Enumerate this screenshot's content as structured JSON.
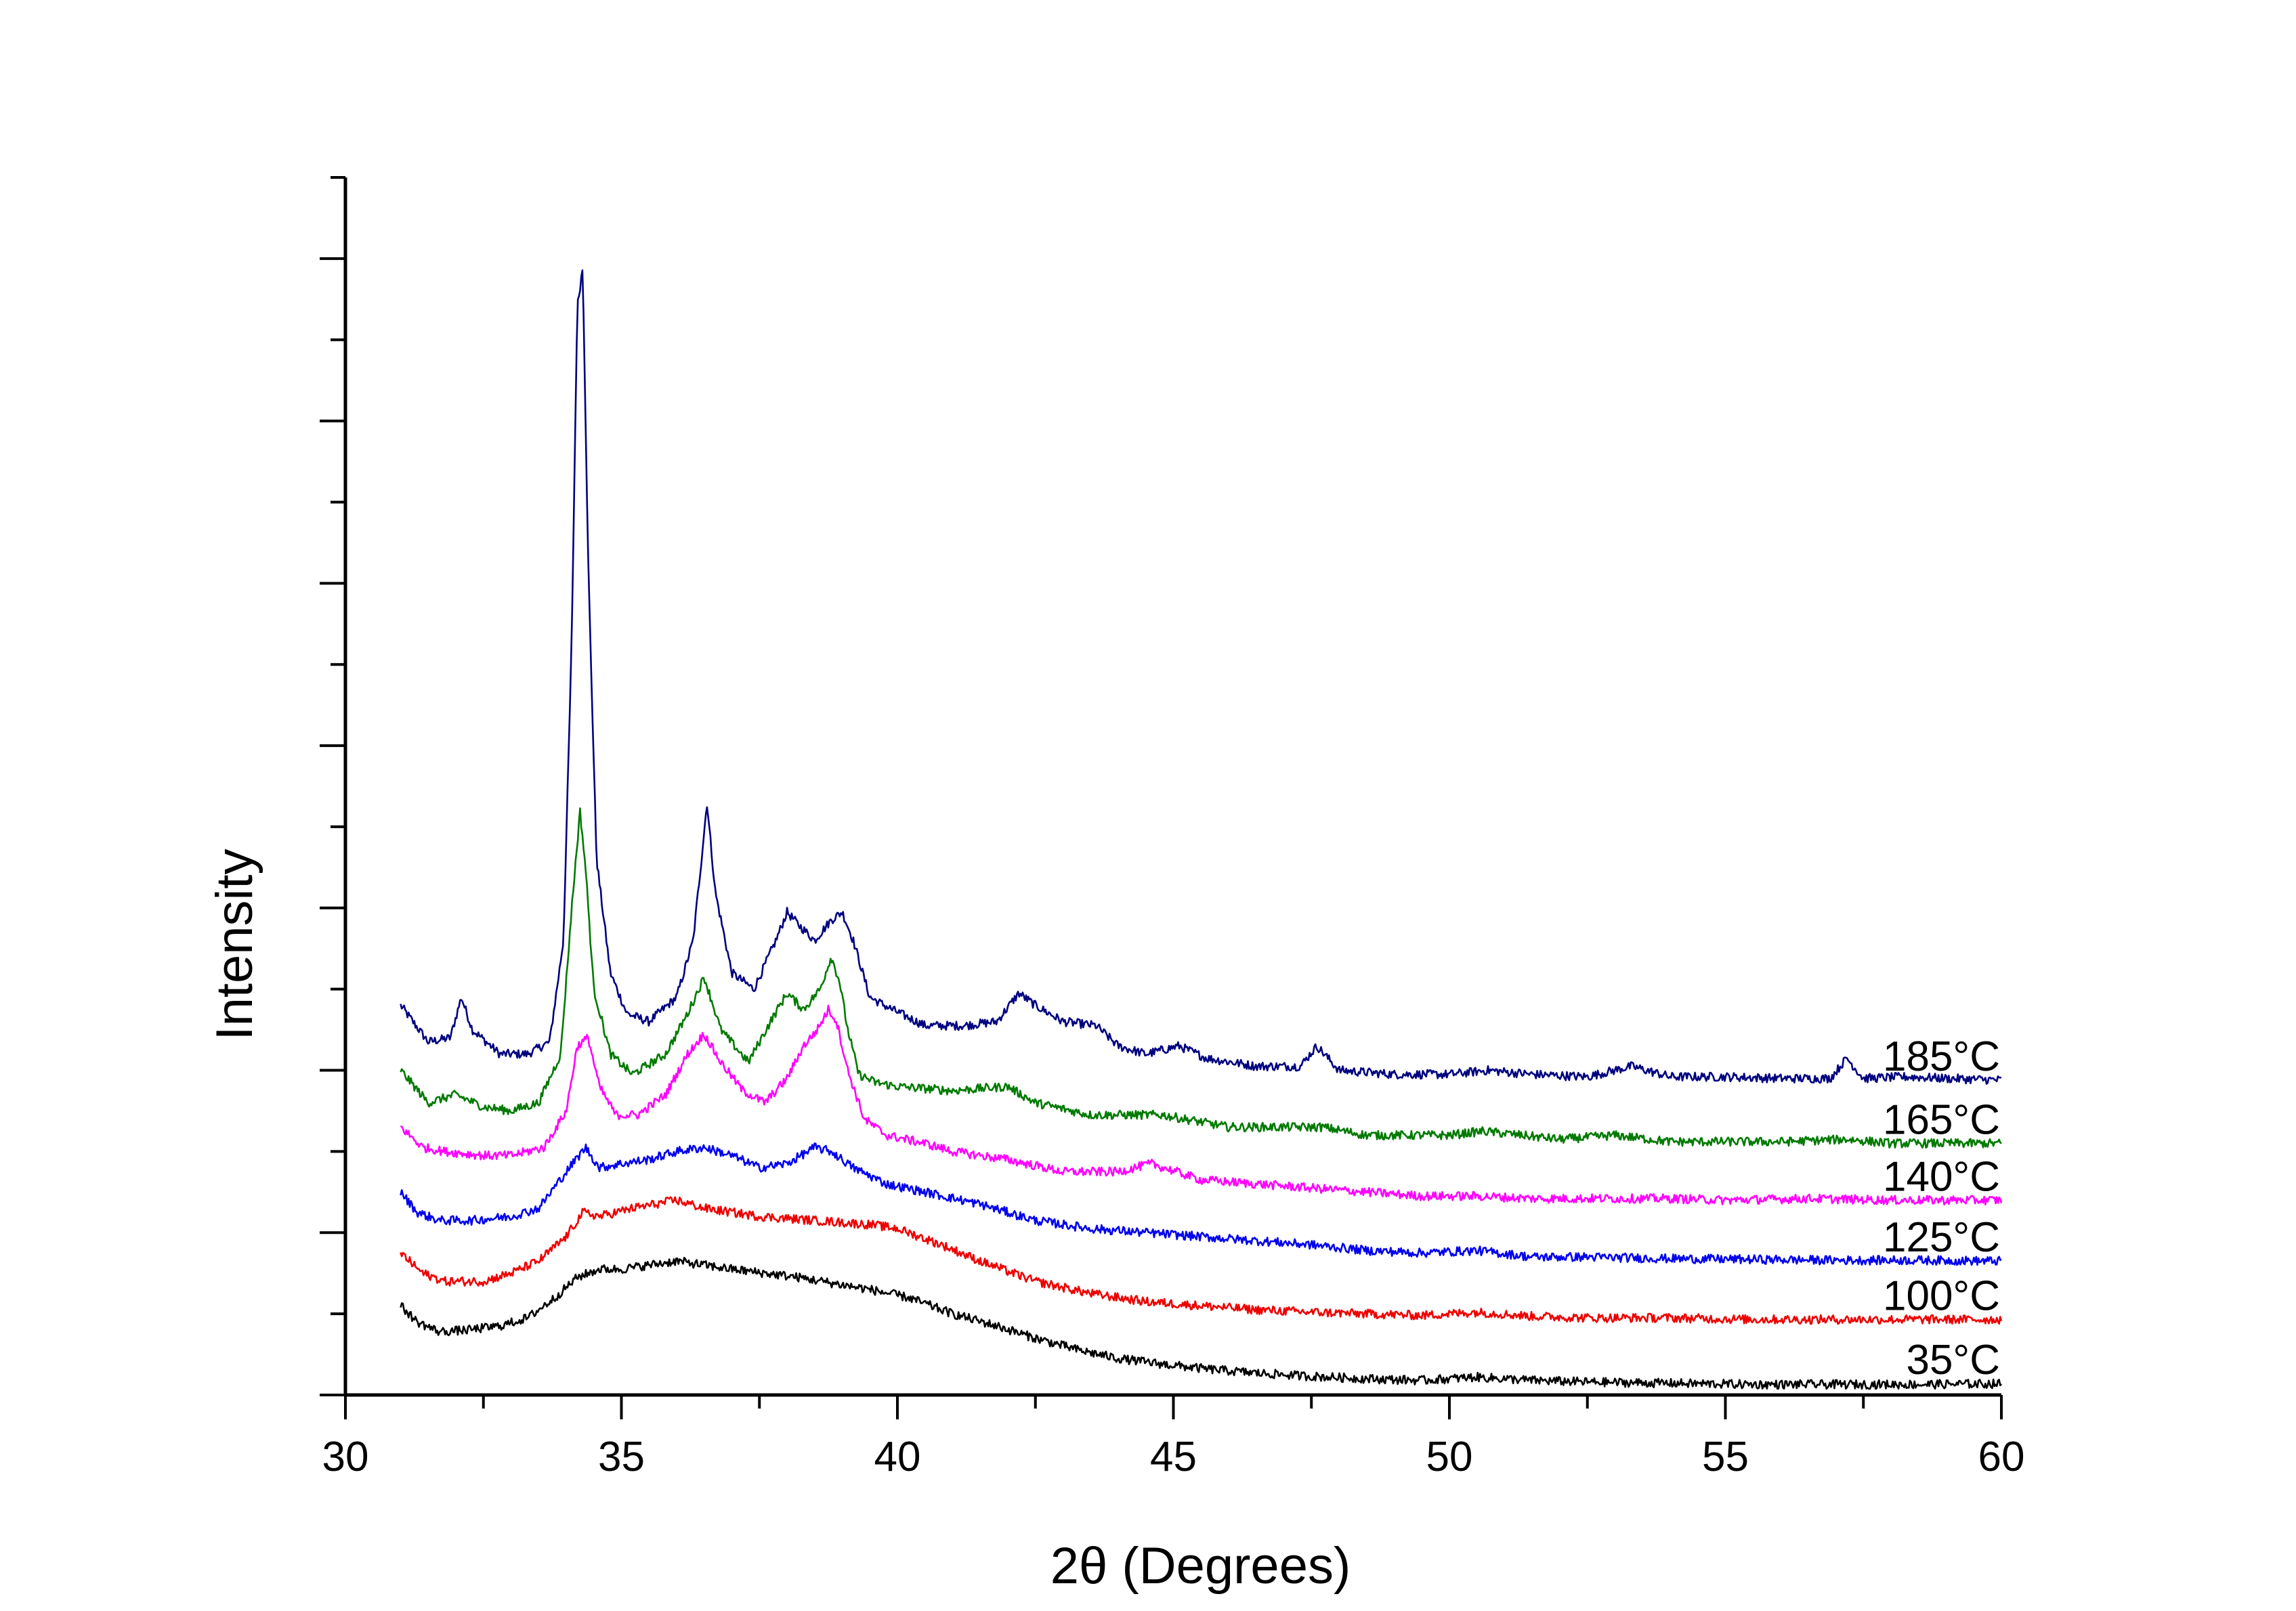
{
  "chart_data": {
    "type": "line",
    "title": "",
    "xlabel": "2θ (Degrees)",
    "ylabel": "Intensity",
    "xlim": [
      30,
      60
    ],
    "ylim": [
      0,
      15
    ],
    "x_ticks": [
      "30",
      "35",
      "40",
      "45",
      "50",
      "55",
      "60"
    ],
    "y_tick_labels_shown": false,
    "grid": false,
    "legend": "none; series are labelled at the right end of each trace",
    "note": "y values are stacked (offset) intensities in arbitrary units read against the unlabelled y ticks",
    "series": [
      {
        "name": "185°C",
        "color": "#000080",
        "x": [
          31.0,
          31.5,
          31.9,
          32.1,
          32.3,
          32.8,
          33.3,
          33.7,
          33.95,
          34.1,
          34.2,
          34.3,
          34.4,
          34.55,
          34.8,
          35.1,
          35.5,
          36.0,
          36.3,
          36.45,
          36.55,
          36.7,
          37.0,
          37.4,
          37.8,
          38.0,
          38.2,
          38.5,
          38.8,
          39.0,
          39.2,
          39.5,
          39.9,
          40.5,
          41.2,
          41.8,
          42.2,
          42.5,
          43.0,
          43.6,
          44.0,
          44.5,
          45.1,
          45.6,
          46.5,
          47.3,
          47.6,
          48.0,
          49.0,
          50.0,
          50.7,
          51.5,
          52.5,
          53.3,
          54.0,
          55.0,
          56.0,
          56.9,
          57.2,
          57.5,
          58.3,
          59.0,
          60.0
        ],
        "y": [
          4.8,
          4.35,
          4.4,
          4.9,
          4.5,
          4.2,
          4.2,
          4.35,
          5.6,
          9.3,
          13.4,
          13.9,
          10.2,
          6.6,
          5.2,
          4.7,
          4.6,
          4.9,
          5.6,
          6.6,
          7.3,
          6.2,
          5.2,
          5.0,
          5.6,
          5.95,
          5.8,
          5.6,
          5.85,
          5.95,
          5.6,
          4.9,
          4.75,
          4.55,
          4.55,
          4.6,
          4.95,
          4.8,
          4.6,
          4.55,
          4.3,
          4.2,
          4.3,
          4.15,
          4.05,
          4.05,
          4.3,
          4.0,
          3.95,
          3.95,
          4.0,
          3.95,
          3.92,
          4.05,
          3.92,
          3.92,
          3.9,
          3.9,
          4.15,
          3.9,
          3.92,
          3.9,
          3.88
        ]
      },
      {
        "name": "165°C",
        "color": "#007A00",
        "x": [
          31.0,
          31.5,
          32.0,
          32.5,
          33.0,
          33.5,
          33.9,
          34.1,
          34.25,
          34.35,
          34.5,
          34.8,
          35.2,
          35.8,
          36.2,
          36.5,
          36.8,
          37.3,
          37.7,
          38.0,
          38.3,
          38.6,
          38.8,
          38.95,
          39.1,
          39.3,
          39.6,
          40.0,
          41.0,
          42.0,
          42.5,
          43.5,
          44.8,
          46.0,
          47.0,
          47.7,
          48.5,
          50.0,
          50.6,
          52.0,
          53.0,
          54.0,
          55.0,
          56.0,
          57.2,
          58.0,
          59.0,
          60.0
        ],
        "y": [
          4.0,
          3.6,
          3.7,
          3.55,
          3.5,
          3.6,
          4.2,
          6.0,
          7.2,
          6.5,
          5.0,
          4.2,
          3.95,
          4.2,
          4.7,
          5.15,
          4.5,
          4.1,
          4.6,
          4.95,
          4.75,
          5.0,
          5.4,
          5.1,
          4.5,
          3.95,
          3.85,
          3.8,
          3.75,
          3.8,
          3.6,
          3.45,
          3.45,
          3.3,
          3.3,
          3.3,
          3.2,
          3.2,
          3.25,
          3.15,
          3.2,
          3.12,
          3.12,
          3.12,
          3.15,
          3.1,
          3.1,
          3.1
        ]
      },
      {
        "name": "140°C",
        "color": "#FF00FF",
        "x": [
          31.0,
          31.4,
          31.8,
          32.5,
          33.0,
          33.6,
          34.0,
          34.2,
          34.4,
          34.6,
          34.9,
          35.3,
          35.8,
          36.2,
          36.5,
          36.8,
          37.2,
          37.6,
          38.0,
          38.3,
          38.55,
          38.75,
          38.9,
          39.1,
          39.4,
          39.8,
          40.5,
          41.0,
          42.0,
          43.0,
          44.0,
          44.6,
          45.5,
          46.5,
          47.5,
          48.5,
          49.5,
          50.5,
          51.5,
          52.5,
          54.0,
          55.0,
          56.5,
          58.0,
          59.0,
          60.0
        ],
        "y": [
          3.3,
          3.05,
          3.0,
          2.95,
          2.95,
          3.05,
          3.5,
          4.3,
          4.4,
          3.8,
          3.45,
          3.45,
          3.7,
          4.2,
          4.45,
          4.1,
          3.75,
          3.6,
          3.9,
          4.3,
          4.5,
          4.75,
          4.6,
          4.0,
          3.4,
          3.2,
          3.1,
          3.0,
          2.9,
          2.75,
          2.75,
          2.85,
          2.65,
          2.6,
          2.55,
          2.5,
          2.45,
          2.45,
          2.42,
          2.42,
          2.42,
          2.4,
          2.42,
          2.4,
          2.4,
          2.4
        ]
      },
      {
        "name": "125°C",
        "color": "#0000EE",
        "x": [
          31.0,
          31.3,
          31.7,
          32.3,
          33.0,
          33.5,
          34.0,
          34.35,
          34.6,
          35.0,
          35.5,
          36.0,
          36.5,
          37.0,
          37.5,
          38.0,
          38.5,
          38.8,
          39.2,
          39.8,
          40.5,
          41.5,
          42.5,
          43.5,
          44.5,
          45.5,
          46.5,
          47.5,
          48.5,
          49.5,
          50.5,
          51.5,
          52.5,
          54.0,
          55.5,
          57.0,
          58.5,
          60.0
        ],
        "y": [
          2.5,
          2.25,
          2.15,
          2.15,
          2.2,
          2.3,
          2.75,
          3.05,
          2.8,
          2.85,
          2.9,
          3.0,
          3.05,
          2.95,
          2.8,
          2.85,
          3.05,
          3.0,
          2.8,
          2.6,
          2.5,
          2.35,
          2.15,
          2.05,
          2.0,
          1.95,
          1.9,
          1.85,
          1.78,
          1.75,
          1.78,
          1.7,
          1.7,
          1.68,
          1.67,
          1.66,
          1.66,
          1.65
        ]
      },
      {
        "name": "100°C",
        "color": "#EE0000",
        "x": [
          31.0,
          31.4,
          31.8,
          32.5,
          33.0,
          33.5,
          34.0,
          34.3,
          34.6,
          35.2,
          36.0,
          36.5,
          37.5,
          38.5,
          39.5,
          40.0,
          40.8,
          41.5,
          42.5,
          43.5,
          44.5,
          45.5,
          46.5,
          47.5,
          48.5,
          49.5,
          50.5,
          51.5,
          52.5,
          54.0,
          55.5,
          57.0,
          58.5,
          60.0
        ],
        "y": [
          1.75,
          1.5,
          1.4,
          1.4,
          1.5,
          1.65,
          1.95,
          2.25,
          2.2,
          2.3,
          2.4,
          2.3,
          2.2,
          2.15,
          2.1,
          2.05,
          1.85,
          1.65,
          1.4,
          1.25,
          1.15,
          1.1,
          1.05,
          1.02,
          1.0,
          0.98,
          1.02,
          0.97,
          0.95,
          0.95,
          0.93,
          0.93,
          0.93,
          0.93
        ]
      },
      {
        "name": "35°C",
        "color": "#000000",
        "x": [
          31.0,
          31.3,
          31.7,
          32.2,
          32.8,
          33.3,
          33.8,
          34.2,
          34.6,
          35.0,
          35.5,
          36.0,
          36.5,
          37.0,
          37.6,
          38.2,
          38.8,
          39.5,
          40.2,
          41.0,
          41.8,
          42.5,
          43.3,
          44.0,
          44.8,
          45.6,
          46.5,
          47.5,
          48.5,
          49.5,
          50.5,
          51.5,
          52.5,
          53.5,
          54.5,
          55.5,
          56.5,
          57.5,
          58.5,
          60.0
        ],
        "y": [
          1.1,
          0.9,
          0.78,
          0.8,
          0.85,
          0.95,
          1.2,
          1.45,
          1.55,
          1.55,
          1.6,
          1.65,
          1.6,
          1.55,
          1.5,
          1.45,
          1.38,
          1.3,
          1.2,
          1.0,
          0.85,
          0.7,
          0.55,
          0.45,
          0.38,
          0.32,
          0.27,
          0.23,
          0.2,
          0.18,
          0.22,
          0.18,
          0.16,
          0.15,
          0.14,
          0.13,
          0.13,
          0.13,
          0.13,
          0.14
        ]
      }
    ]
  }
}
